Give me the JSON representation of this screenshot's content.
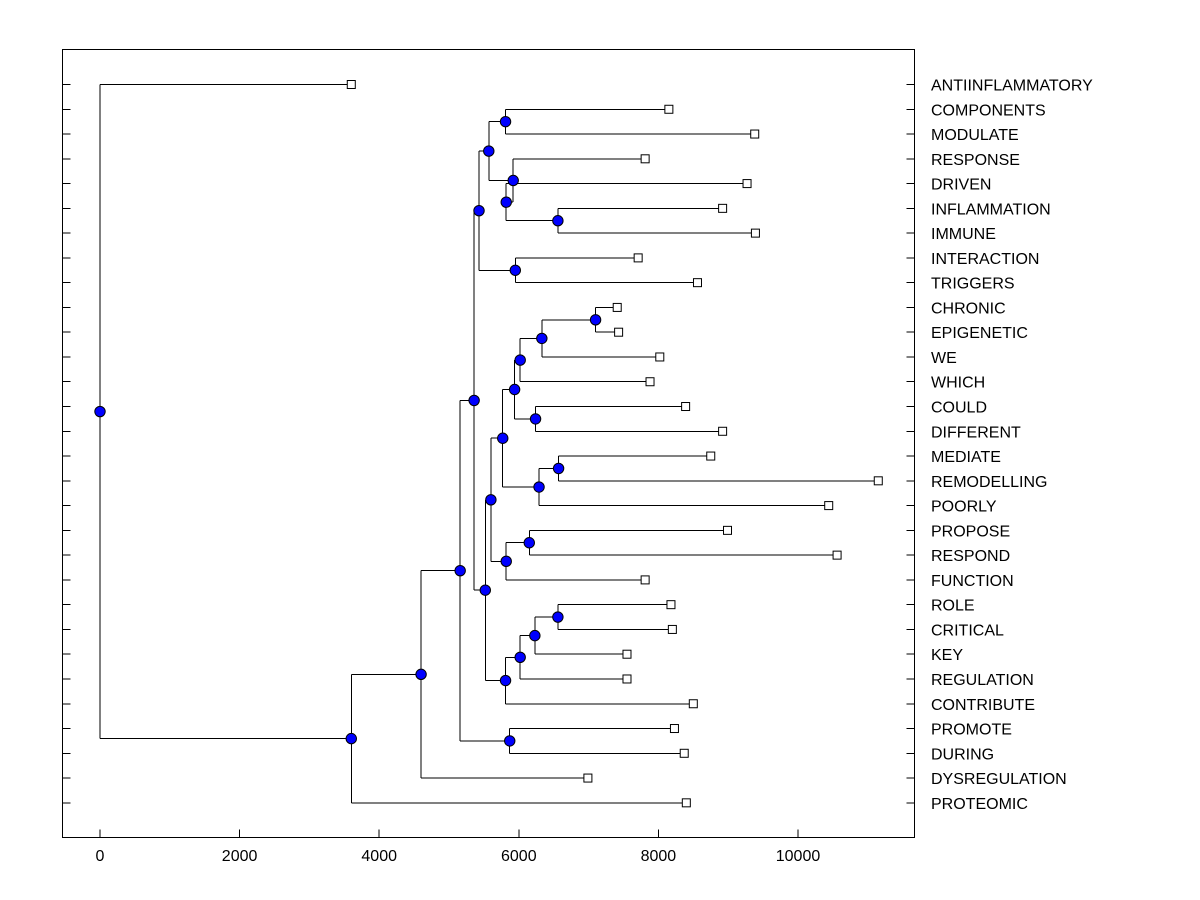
{
  "chart_data": {
    "type": "dendrogram",
    "title": "",
    "xlabel": "",
    "ylabel": "",
    "xlim": [
      -550,
      11650
    ],
    "xticks": [
      0,
      2000,
      4000,
      6000,
      8000,
      10000
    ],
    "xtick_labels": [
      "0",
      "2000",
      "4000",
      "6000",
      "8000",
      "10000"
    ],
    "grid": false,
    "node_color": "#0000ff",
    "leaf_marker_color": "#ffffff",
    "leaves": [
      {
        "label": "ANTIINFLAMMATORY",
        "x": 3600
      },
      {
        "label": "COMPONENTS",
        "x": 8150
      },
      {
        "label": "MODULATE",
        "x": 9380
      },
      {
        "label": "RESPONSE",
        "x": 7810
      },
      {
        "label": "DRIVEN",
        "x": 9270
      },
      {
        "label": "INFLAMMATION",
        "x": 8920
      },
      {
        "label": "IMMUNE",
        "x": 9390
      },
      {
        "label": "INTERACTION",
        "x": 7710
      },
      {
        "label": "TRIGGERS",
        "x": 8560
      },
      {
        "label": "CHRONIC",
        "x": 7410
      },
      {
        "label": "EPIGENETIC",
        "x": 7430
      },
      {
        "label": "WE",
        "x": 8020
      },
      {
        "label": "WHICH",
        "x": 7880
      },
      {
        "label": "COULD",
        "x": 8390
      },
      {
        "label": "DIFFERENT",
        "x": 8920
      },
      {
        "label": "MEDIATE",
        "x": 8750
      },
      {
        "label": "REMODELLING",
        "x": 11150
      },
      {
        "label": "POORLY",
        "x": 10440
      },
      {
        "label": "PROPOSE",
        "x": 8990
      },
      {
        "label": "RESPOND",
        "x": 10560
      },
      {
        "label": "FUNCTION",
        "x": 7810
      },
      {
        "label": "ROLE",
        "x": 8180
      },
      {
        "label": "CRITICAL",
        "x": 8200
      },
      {
        "label": "KEY",
        "x": 7550
      },
      {
        "label": "REGULATION",
        "x": 7550
      },
      {
        "label": "CONTRIBUTE",
        "x": 8500
      },
      {
        "label": "PROMOTE",
        "x": 8230
      },
      {
        "label": "DURING",
        "x": 8370
      },
      {
        "label": "DYSREGULATION",
        "x": 6990
      },
      {
        "label": "PROTEOMIC",
        "x": 8400
      }
    ],
    "merges": [
      {
        "id": "n1",
        "x": 5810,
        "children": [
          "COMPONENTS",
          "MODULATE"
        ]
      },
      {
        "id": "n2",
        "x": 6560,
        "children": [
          "INFLAMMATION",
          "IMMUNE"
        ]
      },
      {
        "id": "n3",
        "x": 5820,
        "children": [
          "DRIVEN",
          "n2"
        ]
      },
      {
        "id": "n4",
        "x": 5920,
        "children": [
          "RESPONSE",
          "n3"
        ]
      },
      {
        "id": "n5",
        "x": 5570,
        "children": [
          "n1",
          "n4"
        ]
      },
      {
        "id": "n6",
        "x": 5950,
        "children": [
          "INTERACTION",
          "TRIGGERS"
        ]
      },
      {
        "id": "n7",
        "x": 5430,
        "children": [
          "n5",
          "n6"
        ]
      },
      {
        "id": "n8",
        "x": 7100,
        "children": [
          "CHRONIC",
          "EPIGENETIC"
        ]
      },
      {
        "id": "n9",
        "x": 6330,
        "children": [
          "n8",
          "WE"
        ]
      },
      {
        "id": "n10",
        "x": 6020,
        "children": [
          "n9",
          "WHICH"
        ]
      },
      {
        "id": "n11",
        "x": 6240,
        "children": [
          "COULD",
          "DIFFERENT"
        ]
      },
      {
        "id": "n12",
        "x": 5940,
        "children": [
          "n10",
          "n11"
        ]
      },
      {
        "id": "n13",
        "x": 6570,
        "children": [
          "MEDIATE",
          "REMODELLING"
        ]
      },
      {
        "id": "n14",
        "x": 6290,
        "children": [
          "n13",
          "POORLY"
        ]
      },
      {
        "id": "n15",
        "x": 5770,
        "children": [
          "n12",
          "n14"
        ]
      },
      {
        "id": "n16",
        "x": 6150,
        "children": [
          "PROPOSE",
          "RESPOND"
        ]
      },
      {
        "id": "n17",
        "x": 5820,
        "children": [
          "n16",
          "FUNCTION"
        ]
      },
      {
        "id": "n18",
        "x": 5600,
        "children": [
          "n15",
          "n17"
        ]
      },
      {
        "id": "n19",
        "x": 6560,
        "children": [
          "ROLE",
          "CRITICAL"
        ]
      },
      {
        "id": "n20",
        "x": 6230,
        "children": [
          "n19",
          "KEY"
        ]
      },
      {
        "id": "n21",
        "x": 6020,
        "children": [
          "n20",
          "REGULATION"
        ]
      },
      {
        "id": "n22",
        "x": 5810,
        "children": [
          "n21",
          "CONTRIBUTE"
        ]
      },
      {
        "id": "n23",
        "x": 5520,
        "children": [
          "n18",
          "n22"
        ]
      },
      {
        "id": "n24",
        "x": 5360,
        "children": [
          "n7",
          "n23"
        ]
      },
      {
        "id": "n25",
        "x": 5870,
        "children": [
          "PROMOTE",
          "DURING"
        ]
      },
      {
        "id": "n26",
        "x": 5160,
        "children": [
          "n24",
          "n25"
        ]
      },
      {
        "id": "n27",
        "x": 4600,
        "children": [
          "n26",
          "DYSREGULATION"
        ]
      },
      {
        "id": "n28",
        "x": 3600,
        "children": [
          "n27",
          "PROTEOMIC"
        ]
      },
      {
        "id": "root",
        "x": 0,
        "children": [
          "ANTIINFLAMMATORY",
          "n28"
        ]
      }
    ]
  }
}
